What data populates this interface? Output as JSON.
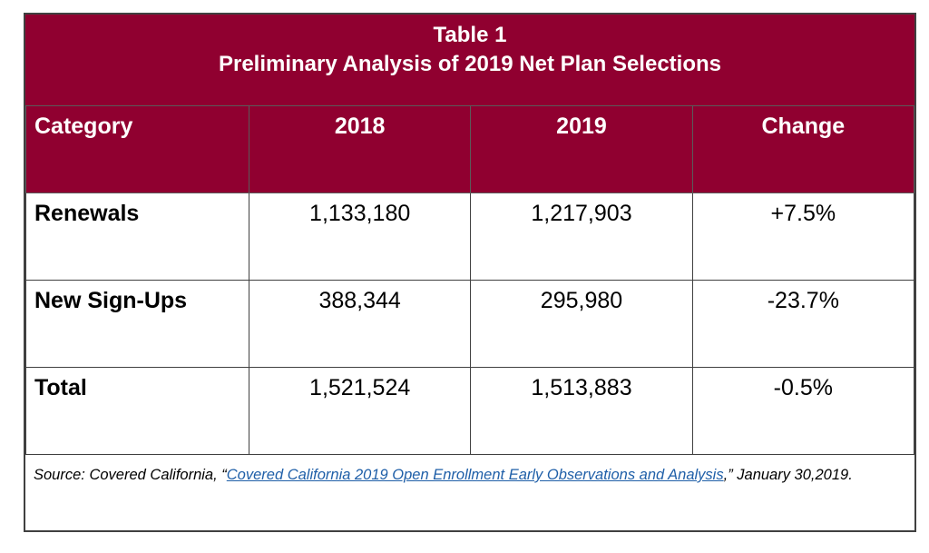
{
  "table": {
    "title": "Table 1",
    "subtitle": "Preliminary Analysis of 2019 Net Plan Selections",
    "header_color": "#900030",
    "source": {
      "prefix": "Source: Covered California, “",
      "link_text": "Covered California 2019 Open Enrollment Early Observations and Analysis",
      "suffix": ",” January 30,2019.",
      "link_color": "#1f5fa8"
    }
  },
  "chart_data": {
    "type": "table",
    "title": "Table 1",
    "subtitle": "Preliminary Analysis of 2019 Net Plan Selections",
    "columns": [
      "Category",
      "2018",
      "2019",
      "Change"
    ],
    "rows": [
      [
        "Renewals",
        "1,133,180",
        "1,217,903",
        "+7.5%"
      ],
      [
        "New Sign-Ups",
        "388,344",
        "295,980",
        "-23.7%"
      ],
      [
        "Total",
        "1,521,524",
        "1,513,883",
        "-0.5%"
      ]
    ]
  }
}
